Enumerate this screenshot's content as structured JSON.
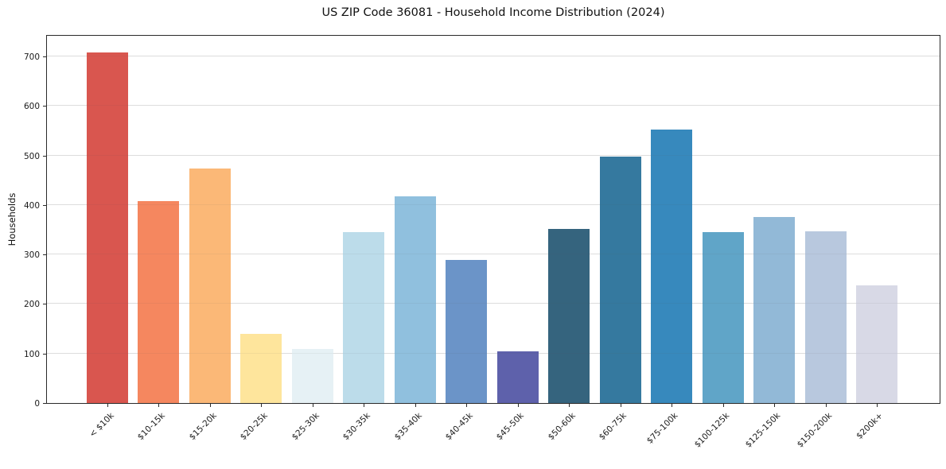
{
  "figure": {
    "title": "US ZIP Code 36081 - Household Income Distribution (2024)",
    "ylabel": "Households"
  },
  "chart_data": {
    "type": "bar",
    "title": "US ZIP Code 36081 - Household Income Distribution (2024)",
    "xlabel": "",
    "ylabel": "Households",
    "categories": [
      "< $10k",
      "$10-15k",
      "$15-20k",
      "$20-25k",
      "$25-30k",
      "$30-35k",
      "$35-40k",
      "$40-45k",
      "$45-50k",
      "$50-60k",
      "$60-75k",
      "$75-100k",
      "$100-125k",
      "$125-150k",
      "$150-200k",
      "$200k+"
    ],
    "values": [
      708,
      408,
      474,
      140,
      110,
      345,
      417,
      289,
      104,
      352,
      498,
      553,
      345,
      376,
      347,
      238
    ],
    "bar_colors": [
      "#d9564f",
      "#f5875f",
      "#fbb877",
      "#fee59c",
      "#e6f1f5",
      "#bcdcea",
      "#90c0de",
      "#6b94c8",
      "#5e61ab",
      "#35647e",
      "#35799f",
      "#3789bd",
      "#60a5c8",
      "#92b9d7",
      "#b8c8de",
      "#d8d9e6"
    ],
    "yticks": [
      0,
      100,
      200,
      300,
      400,
      500,
      600,
      700
    ],
    "ylim": [
      0,
      745
    ],
    "grid": "horizontal",
    "legend": "none",
    "background": "#ffffff",
    "gridline_color": "#e8e8e8",
    "axis_color": "#2a2a2a"
  }
}
